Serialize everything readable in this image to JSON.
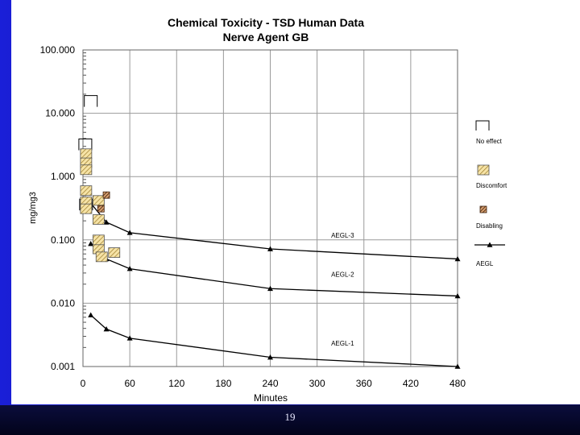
{
  "slide": {
    "page_number": "19"
  },
  "chart_data": {
    "type": "scatter",
    "title": "Chemical Toxicity - TSD Human Data",
    "subtitle": "Nerve Agent GB",
    "xlabel": "Minutes",
    "ylabel": "mg/mg3",
    "xlim": [
      0,
      480
    ],
    "ylim": [
      0.001,
      100
    ],
    "yscale": "log",
    "grid": true,
    "x_ticks": [
      "0",
      "60",
      "120",
      "180",
      "240",
      "300",
      "360",
      "420",
      "480"
    ],
    "y_ticks": [
      "0.001",
      "0.010",
      "0.100",
      "1.000",
      "10.000",
      "100.000"
    ],
    "series": [
      {
        "kind": "line",
        "label": "AEGL-3",
        "points": [
          [
            10,
            0.38
          ],
          [
            30,
            0.19
          ],
          [
            60,
            0.13
          ],
          [
            240,
            0.072
          ],
          [
            480,
            0.05
          ]
        ]
      },
      {
        "kind": "line",
        "label": "AEGL-2",
        "points": [
          [
            10,
            0.087
          ],
          [
            30,
            0.05
          ],
          [
            60,
            0.035
          ],
          [
            240,
            0.017
          ],
          [
            480,
            0.013
          ]
        ]
      },
      {
        "kind": "line",
        "label": "AEGL-1",
        "points": [
          [
            10,
            0.0065
          ],
          [
            30,
            0.0039
          ],
          [
            60,
            0.0028
          ],
          [
            240,
            0.0014
          ],
          [
            480,
            0.001
          ]
        ]
      },
      {
        "kind": "marker",
        "style": "no_effect",
        "points": [
          [
            10,
            15.5
          ],
          [
            3,
            3.2
          ],
          [
            4,
            0.36
          ]
        ]
      },
      {
        "kind": "marker",
        "style": "discomfort",
        "points": [
          [
            4,
            2.3
          ],
          [
            4,
            1.65
          ],
          [
            4,
            1.28
          ],
          [
            4,
            0.6
          ],
          [
            4,
            0.33
          ],
          [
            4,
            0.4
          ],
          [
            4,
            0.31
          ],
          [
            20,
            0.42
          ],
          [
            20,
            0.21
          ],
          [
            20,
            0.072
          ],
          [
            20,
            0.1
          ],
          [
            40,
            0.063
          ],
          [
            24,
            0.054
          ]
        ]
      },
      {
        "kind": "marker",
        "style": "disabling",
        "points": [
          [
            30,
            0.51
          ],
          [
            23,
            0.31
          ]
        ]
      }
    ],
    "legend": {
      "position": "right",
      "entries": [
        {
          "style": "no_effect",
          "label": "No effect"
        },
        {
          "style": "discomfort",
          "label": "Discomfort"
        },
        {
          "style": "disabling",
          "label": "Disabling"
        },
        {
          "style": "aegl",
          "label": "AEGL"
        }
      ]
    }
  }
}
